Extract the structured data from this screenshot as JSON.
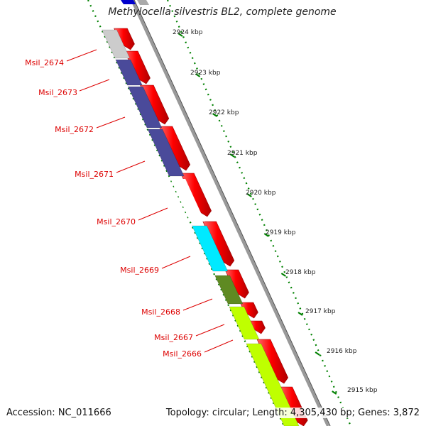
{
  "title": "Methylocella silvestris BL2, complete genome",
  "footer": {
    "accession": "Accession: NC_011666",
    "summary": "Topology: circular; Length: 4,305,430 bp; Genes: 3,872"
  },
  "scale_ticks": [
    "2924 kbp",
    "2923 kbp",
    "2922 kbp",
    "2921 kbp",
    "2920 kbp",
    "2919 kbp",
    "2918 kbp",
    "2917 kbp",
    "2916 kbp",
    "2915 kbp"
  ],
  "genes_reverse": [
    {
      "label": "Msil_2674",
      "color": "#cccccc"
    },
    {
      "label": "Msil_2673",
      "color": "#4a4a9a"
    },
    {
      "label": "Msil_2672",
      "color": "#4a4a9a"
    },
    {
      "label": "Msil_2671",
      "color": "#4a4a9a"
    },
    {
      "label": "Msil_2670",
      "color": "#ffffff"
    },
    {
      "label": "Msil_2669",
      "color": "#00eaff"
    },
    {
      "label": "Msil_2668",
      "color": "#5f8a22"
    },
    {
      "label": "Msil_2667",
      "color": "#bfff00"
    },
    {
      "label": "Msil_2666",
      "color": "#bfff00"
    }
  ],
  "colors": {
    "forward_gene": "#ff0000",
    "backbone": "#888888",
    "label_text": "#dd0000",
    "tick_marks": "#008000",
    "top_blue": "#0000cc"
  }
}
